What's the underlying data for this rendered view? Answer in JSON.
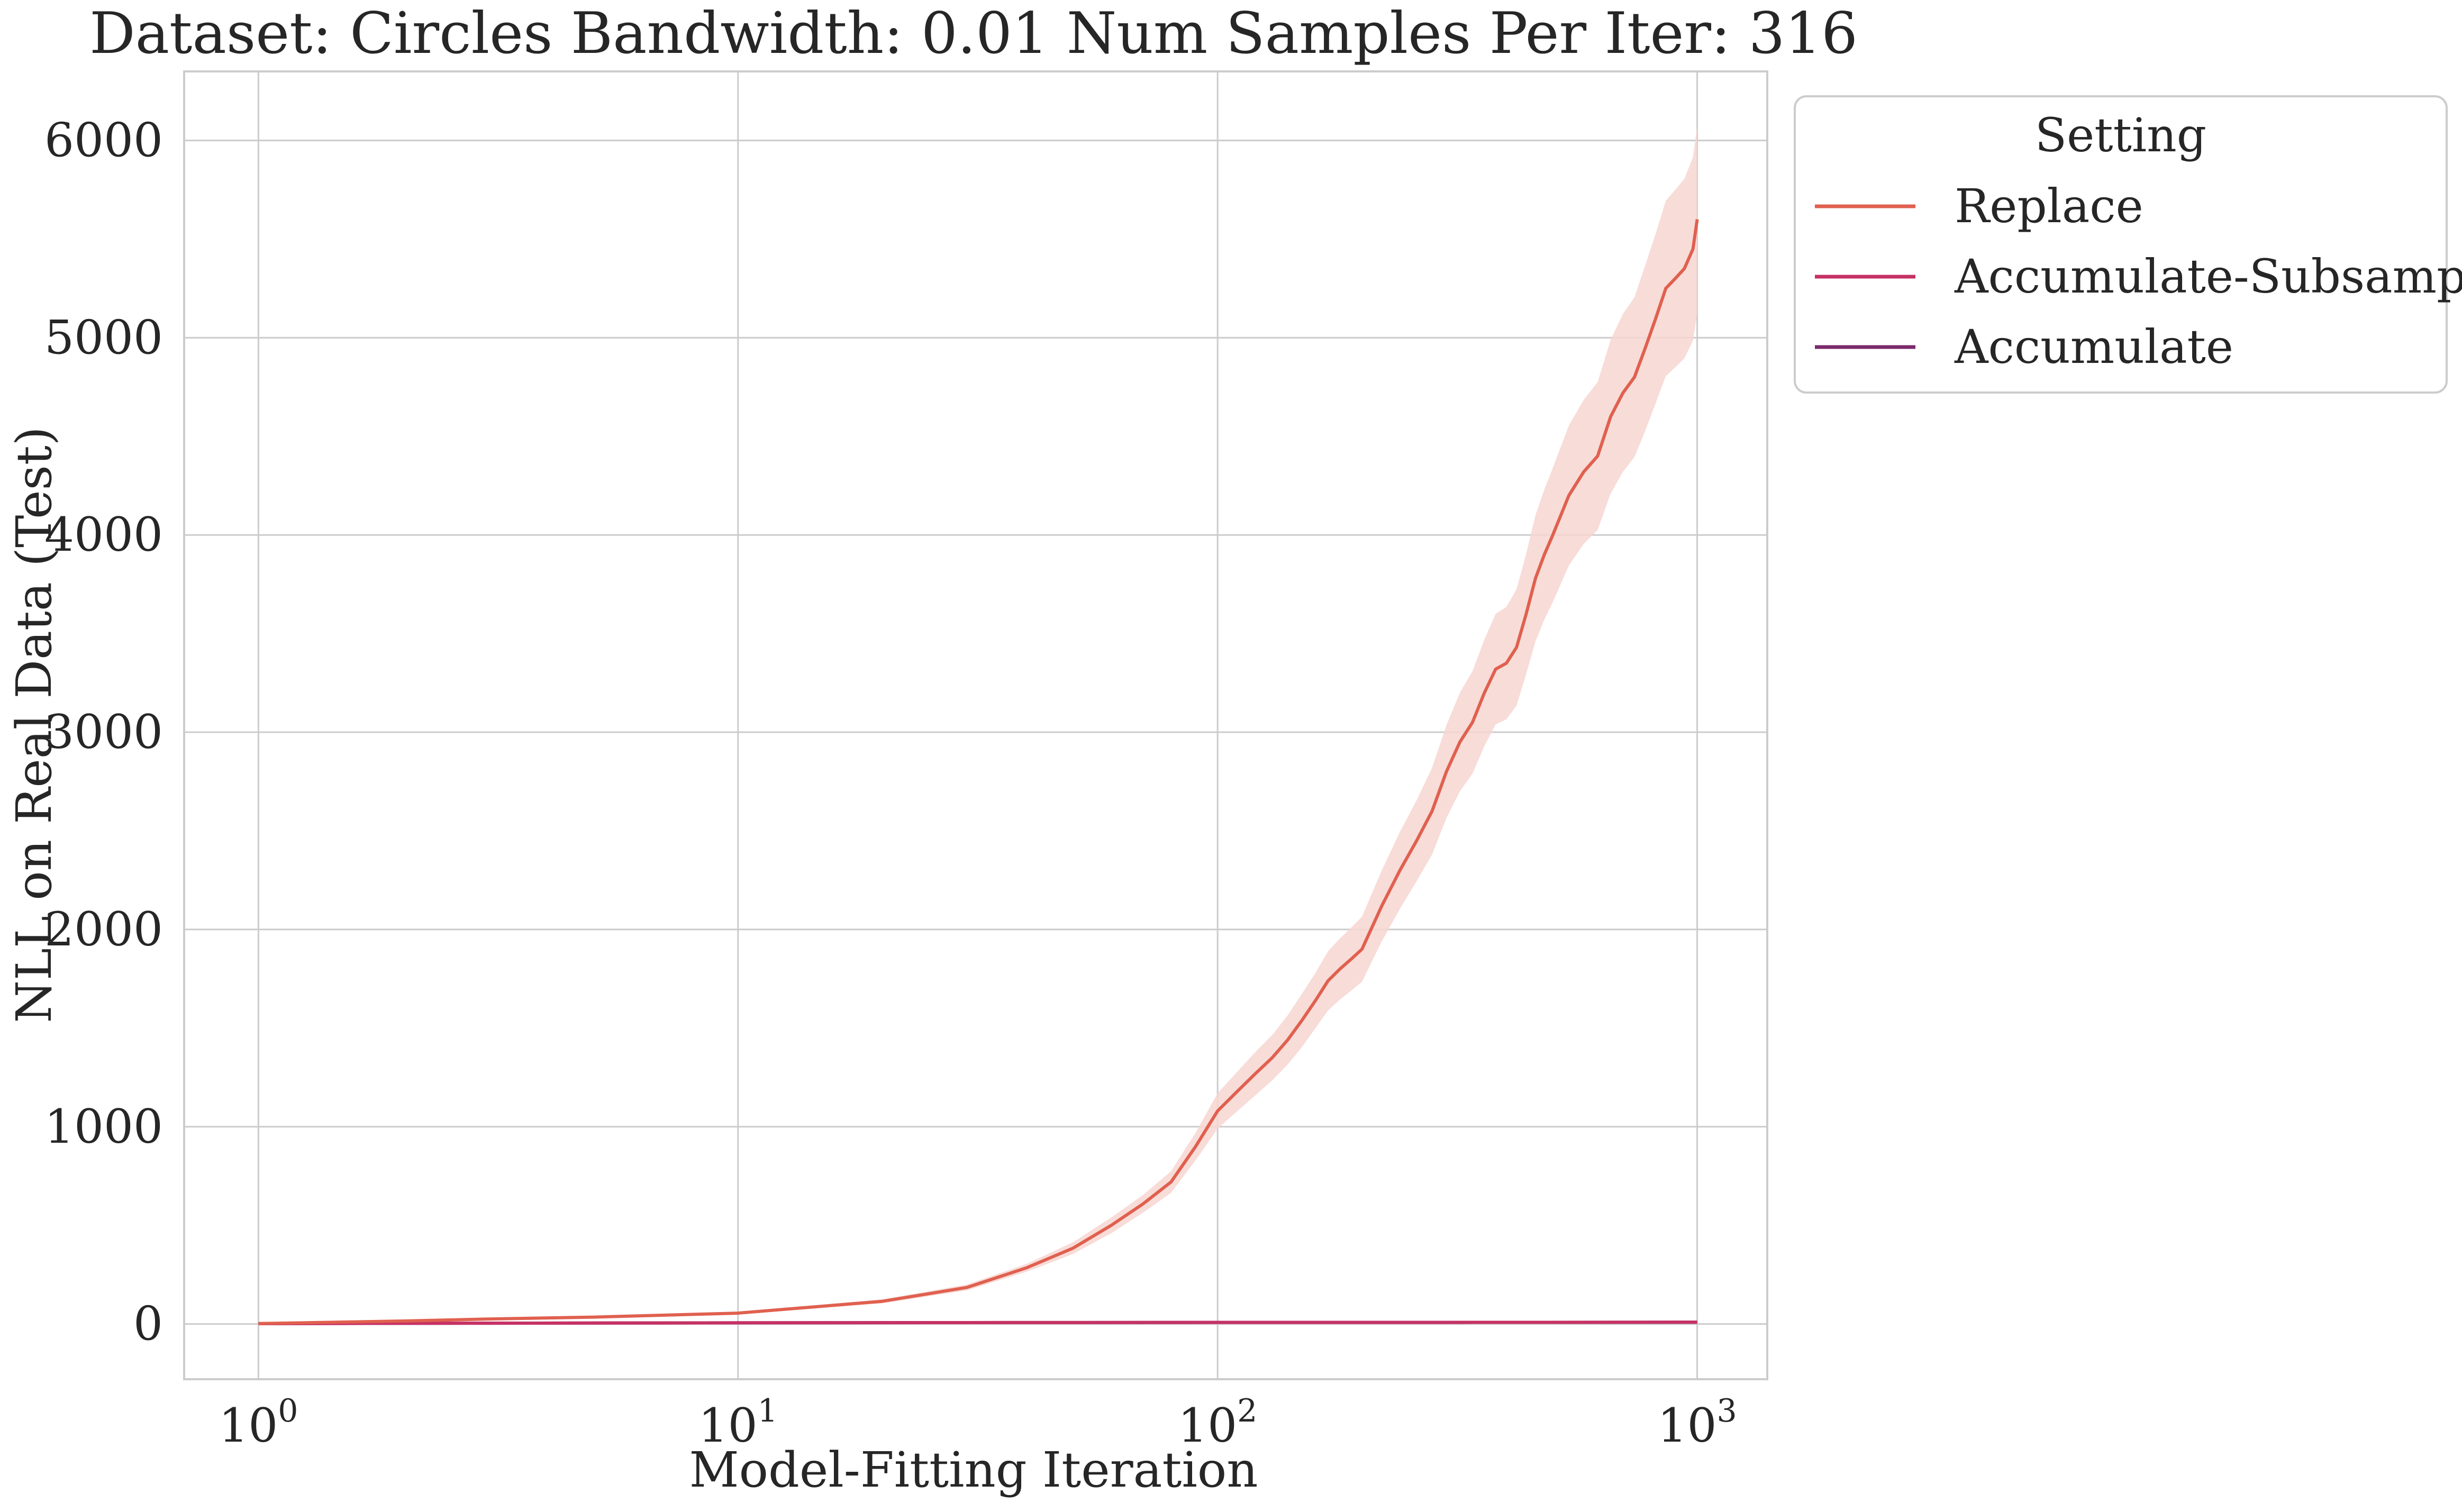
{
  "colors": {
    "replace": "#e0604f",
    "replace_band": "#f7d6d1",
    "accumulate_subsample": "#c63265",
    "accumulate": "#7b2a6b",
    "grid": "#cccccc",
    "spine": "#cccccc",
    "text": "#262626"
  },
  "chart_data": {
    "type": "line",
    "title": "Dataset: Circles Bandwidth: 0.01 Num Samples Per Iter: 316",
    "xlabel": "Model-Fitting Iteration",
    "ylabel": "NLL on Real Data (Test)",
    "x_scale": "log",
    "xlim": [
      0.7,
      1400
    ],
    "ylim": [
      -280,
      6350
    ],
    "x_ticks": [
      {
        "base": "10",
        "exp": "0",
        "value": 1
      },
      {
        "base": "10",
        "exp": "1",
        "value": 10
      },
      {
        "base": "10",
        "exp": "2",
        "value": 100
      },
      {
        "base": "10",
        "exp": "3",
        "value": 1000
      }
    ],
    "y_ticks": [
      0,
      1000,
      2000,
      3000,
      4000,
      5000,
      6000
    ],
    "grid": true,
    "legend": {
      "title": "Setting",
      "placement": "outside-top-right"
    },
    "series": [
      {
        "name": "Replace",
        "color_key": "replace",
        "x": [
          1,
          2,
          3,
          5,
          10,
          20,
          30,
          40,
          50,
          60,
          70,
          80,
          90,
          100,
          110,
          120,
          130,
          140,
          150,
          160,
          170,
          180,
          190,
          200,
          220,
          240,
          260,
          280,
          300,
          320,
          340,
          360,
          380,
          400,
          420,
          440,
          460,
          480,
          500,
          540,
          580,
          620,
          660,
          700,
          740,
          780,
          820,
          860,
          900,
          940,
          980,
          1000
        ],
        "values": [
          2,
          15,
          25,
          35,
          55,
          115,
          185,
          285,
          385,
          500,
          610,
          720,
          900,
          1080,
          1180,
          1270,
          1350,
          1440,
          1540,
          1640,
          1740,
          1800,
          1850,
          1900,
          2120,
          2300,
          2450,
          2600,
          2800,
          2950,
          3050,
          3200,
          3320,
          3350,
          3430,
          3600,
          3780,
          3900,
          4000,
          4200,
          4320,
          4400,
          4600,
          4720,
          4800,
          4950,
          5100,
          5250,
          5300,
          5350,
          5450,
          5600
        ],
        "band_lower": [
          1,
          13,
          22,
          31,
          49,
          105,
          170,
          265,
          355,
          460,
          565,
          665,
          830,
          990,
          1080,
          1160,
          1235,
          1315,
          1405,
          1500,
          1590,
          1645,
          1690,
          1735,
          1940,
          2105,
          2245,
          2380,
          2565,
          2700,
          2790,
          2930,
          3040,
          3065,
          3135,
          3295,
          3460,
          3570,
          3660,
          3845,
          3955,
          4025,
          4210,
          4320,
          4395,
          4530,
          4670,
          4805,
          4850,
          4895,
          4985,
          5120
        ],
        "band_upper": [
          3,
          17,
          28,
          39,
          61,
          125,
          200,
          305,
          415,
          540,
          655,
          775,
          970,
          1170,
          1280,
          1380,
          1465,
          1565,
          1675,
          1780,
          1890,
          1955,
          2010,
          2065,
          2300,
          2495,
          2655,
          2820,
          3035,
          3200,
          3310,
          3470,
          3600,
          3635,
          3725,
          3905,
          4100,
          4230,
          4340,
          4555,
          4685,
          4775,
          4990,
          5120,
          5205,
          5370,
          5530,
          5695,
          5750,
          5805,
          5915,
          6075
        ]
      },
      {
        "name": "Accumulate-Subsample",
        "color_key": "accumulate_subsample",
        "x": [
          1,
          3,
          10,
          30,
          100,
          300,
          1000
        ],
        "values": [
          2,
          4,
          6,
          7,
          8,
          8,
          9
        ]
      },
      {
        "name": "Accumulate",
        "color_key": "accumulate",
        "x": [
          1,
          3,
          10,
          30,
          100,
          300,
          1000
        ],
        "values": [
          2,
          4,
          6,
          7,
          8,
          8,
          9
        ]
      }
    ]
  }
}
